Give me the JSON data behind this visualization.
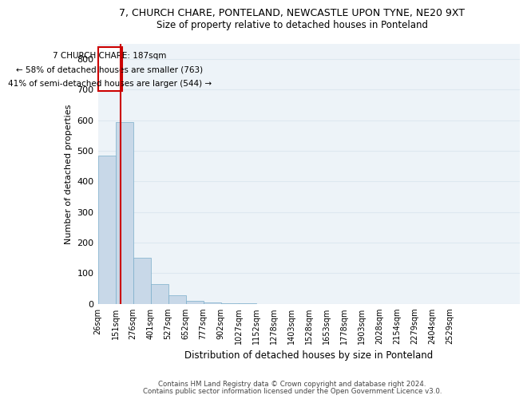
{
  "title1": "7, CHURCH CHARE, PONTELAND, NEWCASTLE UPON TYNE, NE20 9XT",
  "title2": "Size of property relative to detached houses in Ponteland",
  "xlabel": "Distribution of detached houses by size in Ponteland",
  "ylabel": "Number of detached properties",
  "bar_values": [
    485,
    595,
    150,
    65,
    27,
    10,
    5,
    2,
    1,
    0,
    0,
    0,
    0,
    0,
    0,
    0,
    0,
    0,
    0,
    0,
    0,
    0,
    0,
    0
  ],
  "bin_labels": [
    "26sqm",
    "151sqm",
    "276sqm",
    "401sqm",
    "527sqm",
    "652sqm",
    "777sqm",
    "902sqm",
    "1027sqm",
    "1152sqm",
    "1278sqm",
    "1403sqm",
    "1528sqm",
    "1653sqm",
    "1778sqm",
    "1903sqm",
    "2028sqm",
    "2154sqm",
    "2279sqm",
    "2404sqm",
    "2529sqm"
  ],
  "bar_color": "#c8d8e8",
  "bar_edge_color": "#7aadcb",
  "grid_color": "#dde8f0",
  "bg_color": "#edf3f8",
  "vline_color": "#cc0000",
  "annotation_line1": "7 CHURCH CHARE: 187sqm",
  "annotation_line2": "← 58% of detached houses are smaller (763)",
  "annotation_line3": "41% of semi-detached houses are larger (544) →",
  "annotation_box_color": "#cc0000",
  "ylim": [
    0,
    850
  ],
  "yticks": [
    0,
    100,
    200,
    300,
    400,
    500,
    600,
    700,
    800
  ],
  "footer1": "Contains HM Land Registry data © Crown copyright and database right 2024.",
  "footer2": "Contains public sector information licensed under the Open Government Licence v3.0."
}
